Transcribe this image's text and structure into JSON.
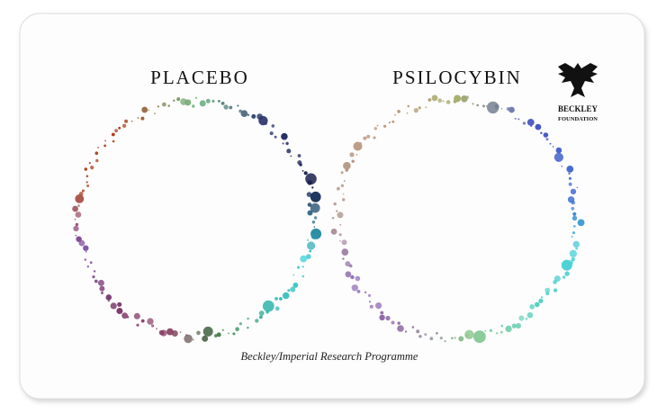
{
  "titles": {
    "left": "PLACEBO",
    "right": "PSILOCYBIN"
  },
  "logo": {
    "line1": "BECKLEY",
    "line2": "FOUNDATION"
  },
  "caption": "Beckley/Imperial Research Programme"
}
